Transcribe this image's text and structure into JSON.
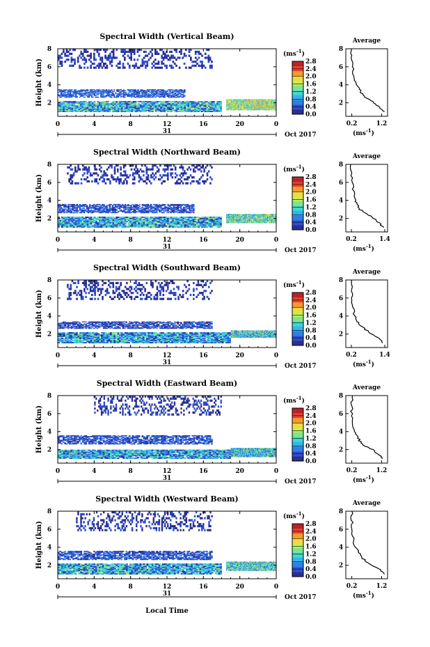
{
  "figure": {
    "xlabel": "Local Time",
    "date_label": "Oct 2017",
    "day_label": "31",
    "cbar_unit": "(ms⁻¹)",
    "avg_title": "Average",
    "avg_unit": "(ms⁻¹)"
  },
  "colormap": [
    "#2b2f8f",
    "#2f4fcf",
    "#2f7fe8",
    "#33b4ee",
    "#3fd8d0",
    "#7ee58f",
    "#c7ee52",
    "#f1d83f",
    "#f59a2e",
    "#e8402a",
    "#b8232a"
  ],
  "chart_data": [
    {
      "type": "heatmap",
      "title": "Spectral Width (Vertical Beam)",
      "ylabel": "Height (km)",
      "x_ticks": [
        "0",
        "4",
        "8",
        "12",
        "16",
        "20",
        "0"
      ],
      "xlim": [
        0,
        24
      ],
      "ylim": [
        0.5,
        8
      ],
      "y_ticks": [
        "2",
        "4",
        "6",
        "8"
      ],
      "cbar_ticks": [
        "0.0",
        "0.4",
        "0.8",
        "1.2",
        "1.6",
        "2.0",
        "2.4",
        "2.8"
      ],
      "cbar_range": [
        0,
        2.8
      ],
      "layers": [
        {
          "from": 1.0,
          "to": 2.2,
          "value": 0.9,
          "t0": 0,
          "t1": 18
        },
        {
          "from": 2.6,
          "to": 3.5,
          "value": 0.45,
          "t0": 0,
          "t1": 14
        },
        {
          "from": 5.8,
          "to": 8.0,
          "value": 0.2,
          "t0": 0,
          "t1": 17
        },
        {
          "from": 1.2,
          "to": 2.4,
          "value": 1.5,
          "t0": 18.5,
          "t1": 24
        }
      ],
      "average": {
        "x_ticks": [
          "0.2",
          "1.2"
        ],
        "xlim": [
          0,
          1.4
        ],
        "y_ticks": [
          "2",
          "4",
          "6",
          "8"
        ],
        "profile": [
          [
            1.0,
            1.3
          ],
          [
            1.5,
            1.15
          ],
          [
            2.0,
            0.95
          ],
          [
            2.5,
            0.7
          ],
          [
            3.0,
            0.55
          ],
          [
            3.5,
            0.45
          ],
          [
            4.0,
            0.35
          ],
          [
            5.0,
            0.28
          ],
          [
            6.0,
            0.22
          ],
          [
            7.0,
            0.2
          ],
          [
            8.0,
            0.2
          ]
        ]
      }
    },
    {
      "type": "heatmap",
      "title": "Spectral Width (Northward Beam)",
      "ylabel": "Height (km)",
      "x_ticks": [
        "0",
        "4",
        "8",
        "12",
        "16",
        "20",
        "0"
      ],
      "xlim": [
        0,
        24
      ],
      "ylim": [
        0.5,
        8
      ],
      "y_ticks": [
        "2",
        "4",
        "6",
        "8"
      ],
      "cbar_ticks": [
        "0.0",
        "0.4",
        "0.8",
        "1.2",
        "1.6",
        "2.0",
        "2.4",
        "2.8"
      ],
      "cbar_range": [
        0,
        2.8
      ],
      "layers": [
        {
          "from": 1.0,
          "to": 2.2,
          "value": 0.85,
          "t0": 0,
          "t1": 18
        },
        {
          "from": 2.6,
          "to": 3.6,
          "value": 0.4,
          "t0": 0,
          "t1": 15
        },
        {
          "from": 5.8,
          "to": 8.0,
          "value": 0.2,
          "t0": 1,
          "t1": 17
        },
        {
          "from": 1.5,
          "to": 2.5,
          "value": 1.2,
          "t0": 18.5,
          "t1": 24
        }
      ],
      "average": {
        "x_ticks": [
          "0.2",
          "1.4"
        ],
        "xlim": [
          0,
          1.5
        ],
        "y_ticks": [
          "2",
          "4",
          "6",
          "8"
        ],
        "profile": [
          [
            1.0,
            1.35
          ],
          [
            1.5,
            1.2
          ],
          [
            2.0,
            1.0
          ],
          [
            2.5,
            0.75
          ],
          [
            3.0,
            0.5
          ],
          [
            3.5,
            0.42
          ],
          [
            4.0,
            0.35
          ],
          [
            5.0,
            0.28
          ],
          [
            6.0,
            0.22
          ],
          [
            7.0,
            0.2
          ],
          [
            8.0,
            0.2
          ]
        ]
      }
    },
    {
      "type": "heatmap",
      "title": "Spectral Width (Southward Beam)",
      "ylabel": "Height (km)",
      "x_ticks": [
        "0",
        "4",
        "8",
        "12",
        "16",
        "20",
        "0"
      ],
      "xlim": [
        0,
        24
      ],
      "ylim": [
        0.5,
        8
      ],
      "y_ticks": [
        "2",
        "4",
        "6",
        "8"
      ],
      "cbar_ticks": [
        "0.0",
        "0.4",
        "0.8",
        "1.2",
        "1.6",
        "2.0",
        "2.4",
        "2.8"
      ],
      "cbar_range": [
        0,
        2.8
      ],
      "layers": [
        {
          "from": 1.0,
          "to": 2.2,
          "value": 0.8,
          "t0": 0,
          "t1": 19
        },
        {
          "from": 2.6,
          "to": 3.4,
          "value": 0.35,
          "t0": 0,
          "t1": 17
        },
        {
          "from": 5.8,
          "to": 8.0,
          "value": 0.2,
          "t0": 1,
          "t1": 17
        },
        {
          "from": 1.6,
          "to": 2.4,
          "value": 1.0,
          "t0": 19,
          "t1": 24
        }
      ],
      "average": {
        "x_ticks": [
          "0.2",
          "1.4"
        ],
        "xlim": [
          0,
          1.5
        ],
        "y_ticks": [
          "2",
          "4",
          "6",
          "8"
        ],
        "profile": [
          [
            1.0,
            1.35
          ],
          [
            1.5,
            1.2
          ],
          [
            2.0,
            0.95
          ],
          [
            2.5,
            0.7
          ],
          [
            3.0,
            0.5
          ],
          [
            3.5,
            0.4
          ],
          [
            4.0,
            0.32
          ],
          [
            5.0,
            0.25
          ],
          [
            6.0,
            0.22
          ],
          [
            7.0,
            0.2
          ],
          [
            8.0,
            0.2
          ]
        ]
      }
    },
    {
      "type": "heatmap",
      "title": "Spectral Width (Eastward Beam)",
      "ylabel": "Height (km)",
      "x_ticks": [
        "0",
        "4",
        "8",
        "12",
        "16",
        "20",
        "0"
      ],
      "xlim": [
        0,
        24
      ],
      "ylim": [
        0.5,
        8
      ],
      "y_ticks": [
        "2",
        "4",
        "6",
        "8"
      ],
      "cbar_ticks": [
        "0.0",
        "0.4",
        "0.8",
        "1.2",
        "1.6",
        "2.0",
        "2.4",
        "2.8"
      ],
      "cbar_range": [
        0,
        2.8
      ],
      "layers": [
        {
          "from": 1.0,
          "to": 2.0,
          "value": 0.8,
          "t0": 0,
          "t1": 19
        },
        {
          "from": 2.6,
          "to": 3.6,
          "value": 0.4,
          "t0": 0,
          "t1": 17
        },
        {
          "from": 5.8,
          "to": 8.0,
          "value": 0.2,
          "t0": 4,
          "t1": 18
        },
        {
          "from": 1.2,
          "to": 2.2,
          "value": 1.0,
          "t0": 19,
          "t1": 24
        }
      ],
      "average": {
        "x_ticks": [
          "0.2",
          "1.2"
        ],
        "xlim": [
          0,
          1.4
        ],
        "y_ticks": [
          "2",
          "4",
          "6",
          "8"
        ],
        "profile": [
          [
            1.0,
            1.25
          ],
          [
            1.5,
            1.1
          ],
          [
            2.0,
            0.9
          ],
          [
            2.5,
            0.6
          ],
          [
            3.0,
            0.45
          ],
          [
            3.5,
            0.4
          ],
          [
            4.0,
            0.3
          ],
          [
            5.0,
            0.22
          ],
          [
            6.0,
            0.2
          ],
          [
            7.0,
            0.2
          ],
          [
            8.0,
            0.2
          ]
        ]
      }
    },
    {
      "type": "heatmap",
      "title": "Spectral Width (Westward Beam)",
      "ylabel": "Height (km)",
      "x_ticks": [
        "0",
        "4",
        "8",
        "12",
        "16",
        "20",
        "0"
      ],
      "xlim": [
        0,
        24
      ],
      "ylim": [
        0.5,
        8
      ],
      "y_ticks": [
        "2",
        "4",
        "6",
        "8"
      ],
      "cbar_ticks": [
        "0.0",
        "0.4",
        "0.8",
        "1.2",
        "1.6",
        "2.0",
        "2.4",
        "2.8"
      ],
      "cbar_range": [
        0,
        2.8
      ],
      "layers": [
        {
          "from": 1.0,
          "to": 2.2,
          "value": 0.85,
          "t0": 0,
          "t1": 18
        },
        {
          "from": 2.6,
          "to": 3.6,
          "value": 0.4,
          "t0": 0,
          "t1": 17
        },
        {
          "from": 5.8,
          "to": 8.0,
          "value": 0.2,
          "t0": 2,
          "t1": 17
        },
        {
          "from": 1.4,
          "to": 2.4,
          "value": 1.1,
          "t0": 18.5,
          "t1": 24
        }
      ],
      "average": {
        "x_ticks": [
          "0.2",
          "1.2"
        ],
        "xlim": [
          0,
          1.4
        ],
        "y_ticks": [
          "2",
          "4",
          "6",
          "8"
        ],
        "profile": [
          [
            1.0,
            1.3
          ],
          [
            1.5,
            1.15
          ],
          [
            2.0,
            0.9
          ],
          [
            2.5,
            0.65
          ],
          [
            3.0,
            0.5
          ],
          [
            3.5,
            0.42
          ],
          [
            4.0,
            0.3
          ],
          [
            5.0,
            0.25
          ],
          [
            6.0,
            0.22
          ],
          [
            7.0,
            0.2
          ],
          [
            8.0,
            0.2
          ]
        ]
      }
    }
  ]
}
